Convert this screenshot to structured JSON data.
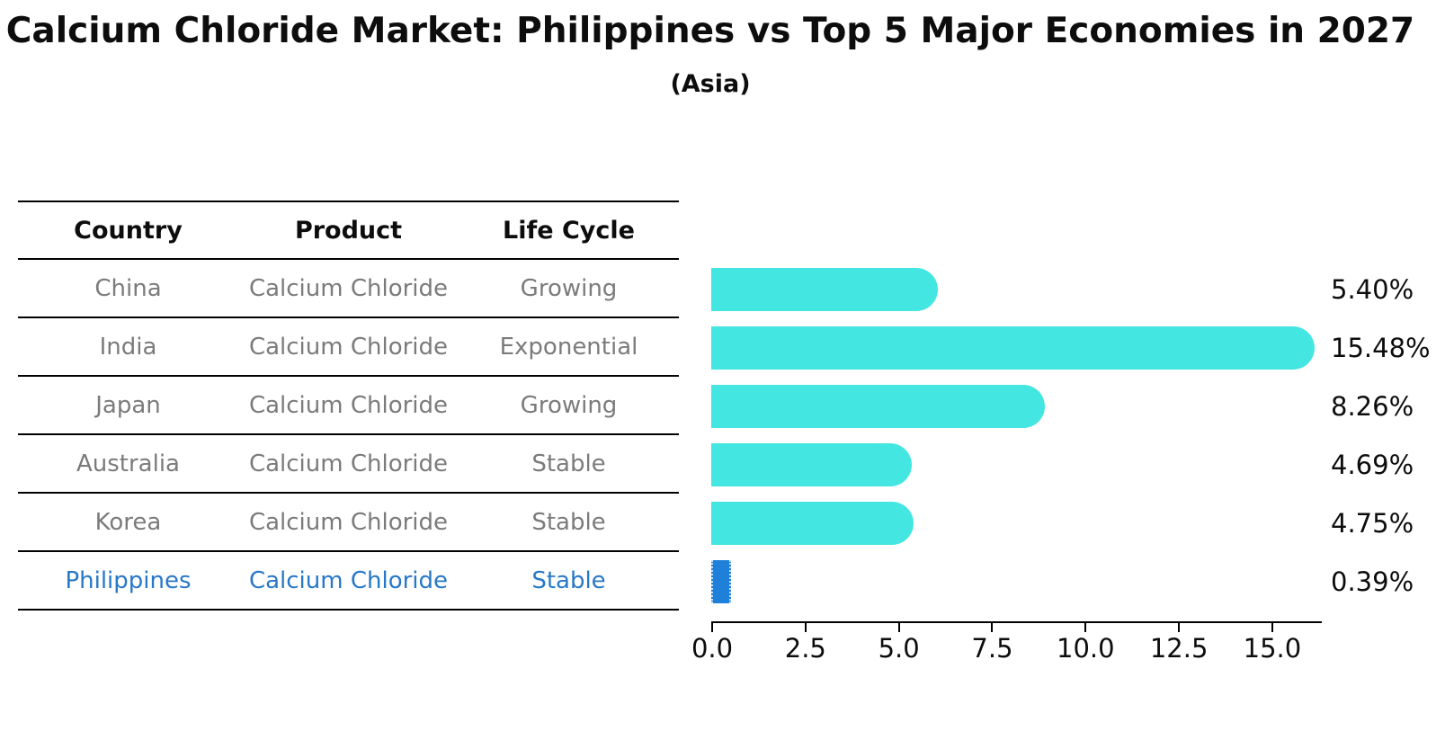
{
  "header": {
    "title": "Calcium Chloride Market: Philippines vs Top 5 Major Economies in 2027",
    "subtitle": "(Asia)"
  },
  "table": {
    "headers": [
      "Country",
      "Product",
      "Life Cycle"
    ],
    "rows": [
      {
        "country": "China",
        "product": "Calcium Chloride",
        "life_cycle": "Growing",
        "value_label": "5.40%",
        "highlight": false
      },
      {
        "country": "India",
        "product": "Calcium Chloride",
        "life_cycle": "Exponential",
        "value_label": "15.48%",
        "highlight": false
      },
      {
        "country": "Japan",
        "product": "Calcium Chloride",
        "life_cycle": "Growing",
        "value_label": "8.26%",
        "highlight": false
      },
      {
        "country": "Australia",
        "product": "Calcium Chloride",
        "life_cycle": "Stable",
        "value_label": "4.69%",
        "highlight": false
      },
      {
        "country": "Korea",
        "product": "Calcium Chloride",
        "life_cycle": "Stable",
        "value_label": "4.75%",
        "highlight": false
      },
      {
        "country": "Philippines",
        "product": "Calcium Chloride",
        "life_cycle": "Stable",
        "value_label": "0.39%",
        "highlight": true
      }
    ]
  },
  "chart_data": {
    "type": "bar",
    "orientation": "horizontal",
    "title": "Calcium Chloride Market: Philippines vs Top 5 Major Economies in 2027",
    "subtitle": "(Asia)",
    "categories": [
      "China",
      "India",
      "Japan",
      "Australia",
      "Korea",
      "Philippines"
    ],
    "values": [
      5.4,
      15.48,
      8.26,
      4.69,
      4.75,
      0.39
    ],
    "value_labels": [
      "5.40%",
      "15.48%",
      "8.26%",
      "4.69%",
      "4.75%",
      "0.39%"
    ],
    "xlabel": "",
    "ylabel": "",
    "xlim": [
      0,
      16.35
    ],
    "x_ticks": [
      0,
      2.5,
      5,
      7.5,
      10,
      12.5,
      15
    ],
    "x_tick_labels": [
      "0.0",
      "2.5",
      "5.0",
      "7.5",
      "10.0",
      "12.5",
      "15.0"
    ],
    "grid": false,
    "legend": "none",
    "highlight_index": 5
  },
  "colors": {
    "bar_cyan": "#43E6E1",
    "bar_blue": "#1E80D8",
    "highlight_text": "#2878C8",
    "table_text": "#7B7B7B",
    "axis": "#000000"
  }
}
